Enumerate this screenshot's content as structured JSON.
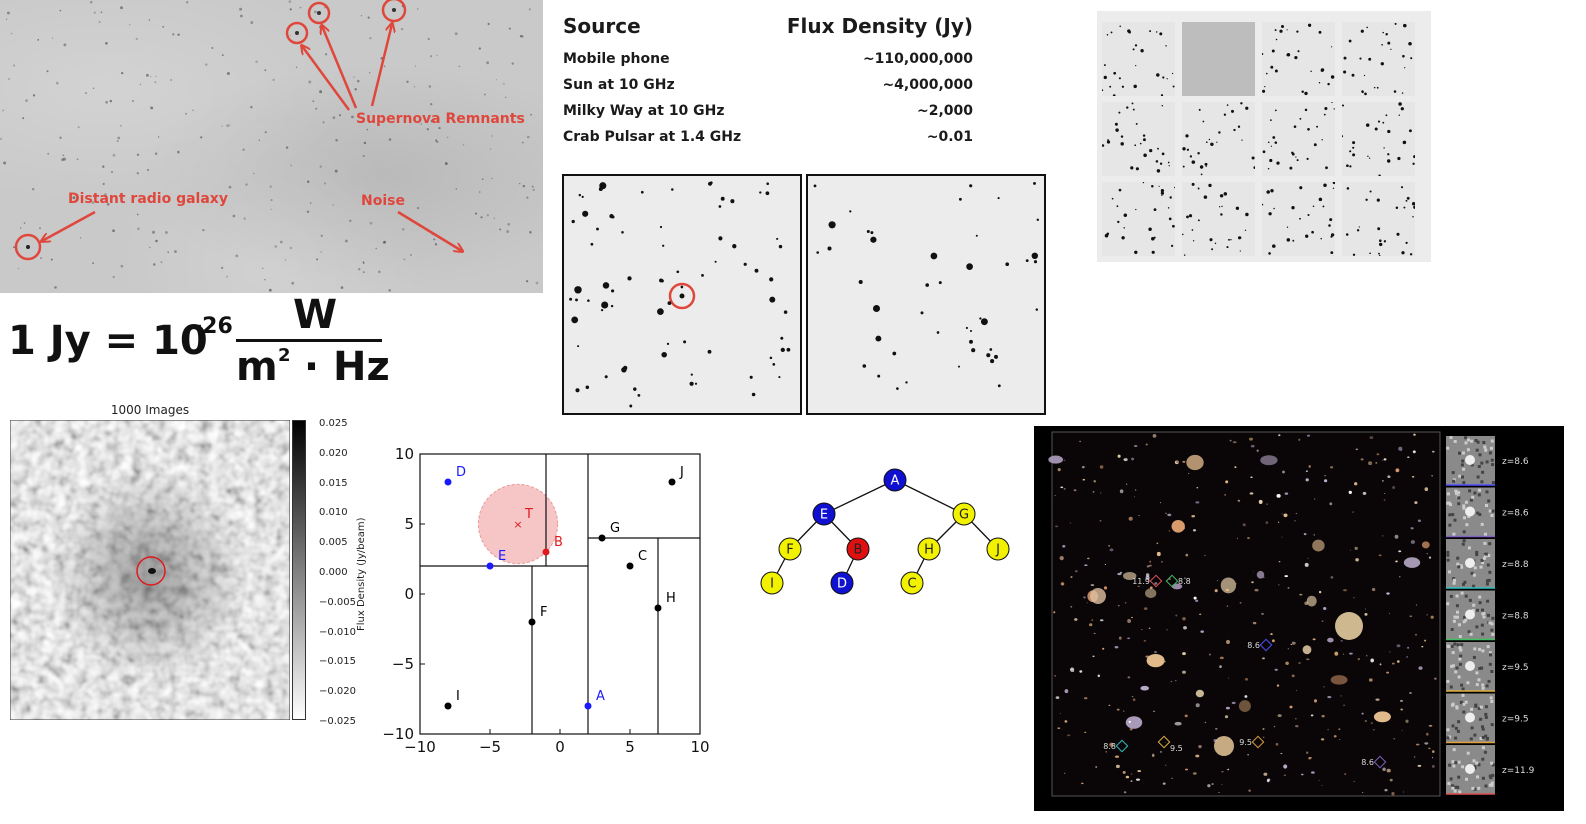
{
  "radio_image": {
    "labels": {
      "supernova": "Supernova Remnants",
      "galaxy": "Distant radio galaxy",
      "noise": "Noise"
    },
    "annotation_color": "#e0473c"
  },
  "flux_table": {
    "headers": {
      "source": "Source",
      "flux": "Flux Density (Jy)"
    },
    "rows": [
      {
        "source": "Mobile phone",
        "flux": "~110,000,000"
      },
      {
        "source": "Sun at 10 GHz",
        "flux": "~4,000,000"
      },
      {
        "source": "Milky Way at 10 GHz",
        "flux": "~2,000"
      },
      {
        "source": "Crab Pulsar at 1.4 GHz",
        "flux": "~0.01"
      }
    ]
  },
  "equation": {
    "lhs": "1 Jy = 10",
    "exponent": "-26",
    "numerator": "W",
    "denominator_base": "m",
    "denominator_exp": "2",
    "denominator_rest": " · Hz"
  },
  "noise_map": {
    "title": "1000 Images",
    "colorbar_label": "Flux Density (Jy/beam)",
    "colorbar_ticks": [
      "0.025",
      "0.020",
      "0.015",
      "0.010",
      "0.005",
      "0.000",
      "−0.005",
      "−0.010",
      "−0.015",
      "−0.020",
      "−0.025"
    ]
  },
  "chart_data": {
    "type": "scatter",
    "xlim": [
      -10,
      10
    ],
    "ylim": [
      -10,
      10
    ],
    "xticks": [
      "−10",
      "−5",
      "0",
      "5",
      "10"
    ],
    "yticks": [
      "10",
      "5",
      "0",
      "−5",
      "−10"
    ],
    "points": [
      {
        "label": "A",
        "x": 2,
        "y": -8,
        "color": "#1a1aff"
      },
      {
        "label": "B",
        "x": -1,
        "y": 3,
        "color": "#e0191e"
      },
      {
        "label": "C",
        "x": 5,
        "y": 2,
        "color": "#000000"
      },
      {
        "label": "D",
        "x": -8,
        "y": 8,
        "color": "#1a1aff"
      },
      {
        "label": "E",
        "x": -5,
        "y": 2,
        "color": "#1a1aff"
      },
      {
        "label": "F",
        "x": -2,
        "y": -2,
        "color": "#000000"
      },
      {
        "label": "G",
        "x": 3,
        "y": 4,
        "color": "#000000"
      },
      {
        "label": "H",
        "x": 7,
        "y": -1,
        "color": "#000000"
      },
      {
        "label": "I",
        "x": -8,
        "y": -8,
        "color": "#000000"
      },
      {
        "label": "J",
        "x": 8,
        "y": 8,
        "color": "#000000"
      }
    ],
    "target": {
      "label": "T",
      "x": -3,
      "y": 5,
      "radius": 2.83,
      "color": "#e0191e"
    },
    "splits": [
      {
        "axis": "x",
        "value": 2,
        "from": -10,
        "to": 10
      },
      {
        "axis": "y",
        "value": 2,
        "from": -10,
        "to": 2
      },
      {
        "axis": "x",
        "value": -1,
        "from": 2,
        "to": 10
      },
      {
        "axis": "x",
        "value": -2,
        "from": -10,
        "to": 2
      },
      {
        "axis": "y",
        "value": 4,
        "from": 2,
        "to": 10
      },
      {
        "axis": "x",
        "value": 7,
        "from": -10,
        "to": 4
      }
    ]
  },
  "kd_tree": {
    "nodes": [
      {
        "label": "A",
        "color": "#1010d0",
        "text": "#ffffff"
      },
      {
        "label": "E",
        "color": "#1010d0",
        "text": "#ffffff"
      },
      {
        "label": "G",
        "color": "#f2f200",
        "text": "#222222"
      },
      {
        "label": "F",
        "color": "#f2f200",
        "text": "#222222"
      },
      {
        "label": "B",
        "color": "#e01010",
        "text": "#222222"
      },
      {
        "label": "H",
        "color": "#f2f200",
        "text": "#222222"
      },
      {
        "label": "J",
        "color": "#f2f200",
        "text": "#222222"
      },
      {
        "label": "I",
        "color": "#f2f200",
        "text": "#222222"
      },
      {
        "label": "D",
        "color": "#1010d0",
        "text": "#ffffff"
      },
      {
        "label": "C",
        "color": "#f2f200",
        "text": "#222222"
      }
    ]
  },
  "galaxy_field": {
    "markers": [
      {
        "label": "11.9",
        "color": "#e05050"
      },
      {
        "label": "8.8",
        "color": "#40c060"
      },
      {
        "label": "8.6",
        "color": "#5050ff"
      },
      {
        "label": "8.8",
        "color": "#30c0c0"
      },
      {
        "label": "9.5",
        "color": "#e0b040"
      },
      {
        "label": "9.5",
        "color": "#e0a040"
      },
      {
        "label": "8.6",
        "color": "#8060c0"
      }
    ],
    "cutouts": [
      {
        "z": "z=8.6",
        "color": "#5050ff"
      },
      {
        "z": "z=8.6",
        "color": "#8060c0"
      },
      {
        "z": "z=8.8",
        "color": "#30c0c0"
      },
      {
        "z": "z=8.8",
        "color": "#40c060"
      },
      {
        "z": "z=9.5",
        "color": "#e0b040"
      },
      {
        "z": "z=9.5",
        "color": "#e0a040"
      },
      {
        "z": "z=11.9",
        "color": "#e05050"
      }
    ]
  }
}
